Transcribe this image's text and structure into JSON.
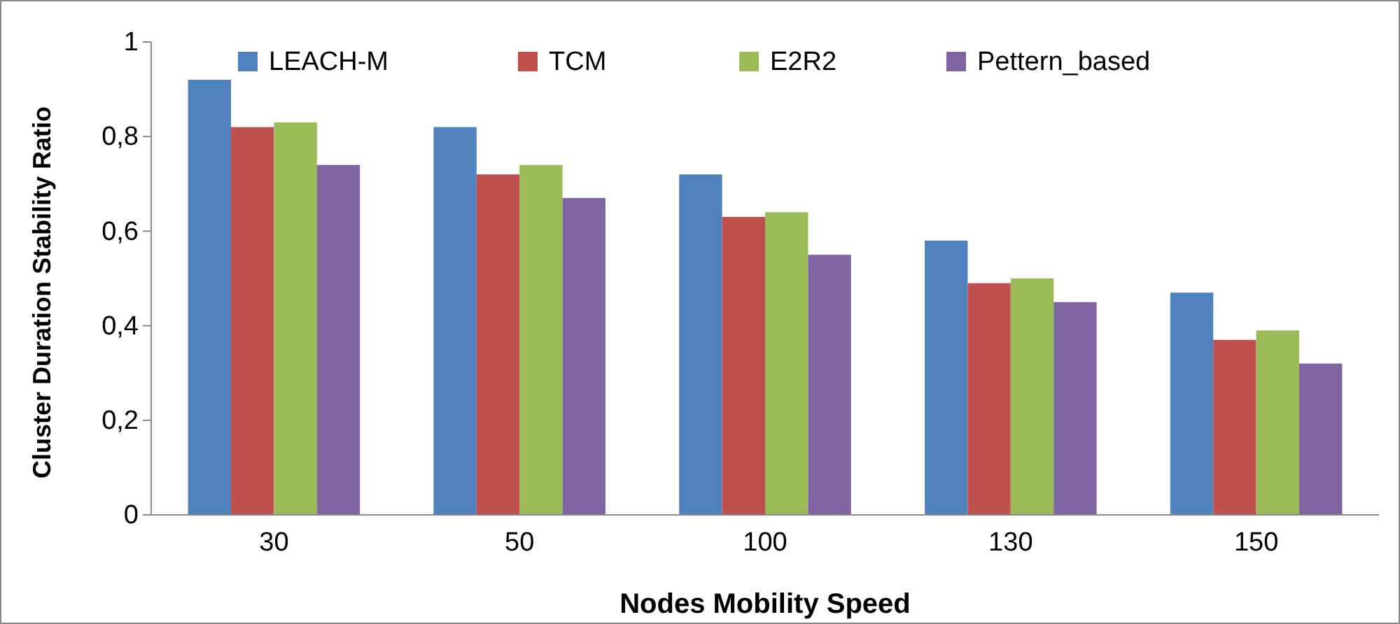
{
  "chart_data": {
    "type": "bar",
    "xlabel": "Nodes  Mobility Speed",
    "ylabel": "Cluster Duration Stability Ratio",
    "categories": [
      "30",
      "50",
      "100",
      "130",
      "150"
    ],
    "series": [
      {
        "name": "LEACH-M",
        "color": "#4f81bd",
        "values": [
          0.92,
          0.82,
          0.72,
          0.58,
          0.47
        ]
      },
      {
        "name": "TCM",
        "color": "#c0504d",
        "values": [
          0.82,
          0.72,
          0.63,
          0.49,
          0.37
        ]
      },
      {
        "name": "E2R2",
        "color": "#9bbb59",
        "values": [
          0.83,
          0.74,
          0.64,
          0.5,
          0.39
        ]
      },
      {
        "name": "Pettern_based",
        "color": "#8064a2",
        "values": [
          0.74,
          0.67,
          0.55,
          0.45,
          0.32
        ]
      }
    ],
    "ylim": [
      0,
      1
    ],
    "yticks": [
      0,
      {
        "value": 0.2,
        "label": "0,2"
      },
      {
        "value": 0.4,
        "label": "0,4"
      },
      {
        "value": 0.6,
        "label": "0,6"
      },
      {
        "value": 0.8,
        "label": "0,8"
      },
      1
    ],
    "grid": false,
    "legend": "top"
  }
}
